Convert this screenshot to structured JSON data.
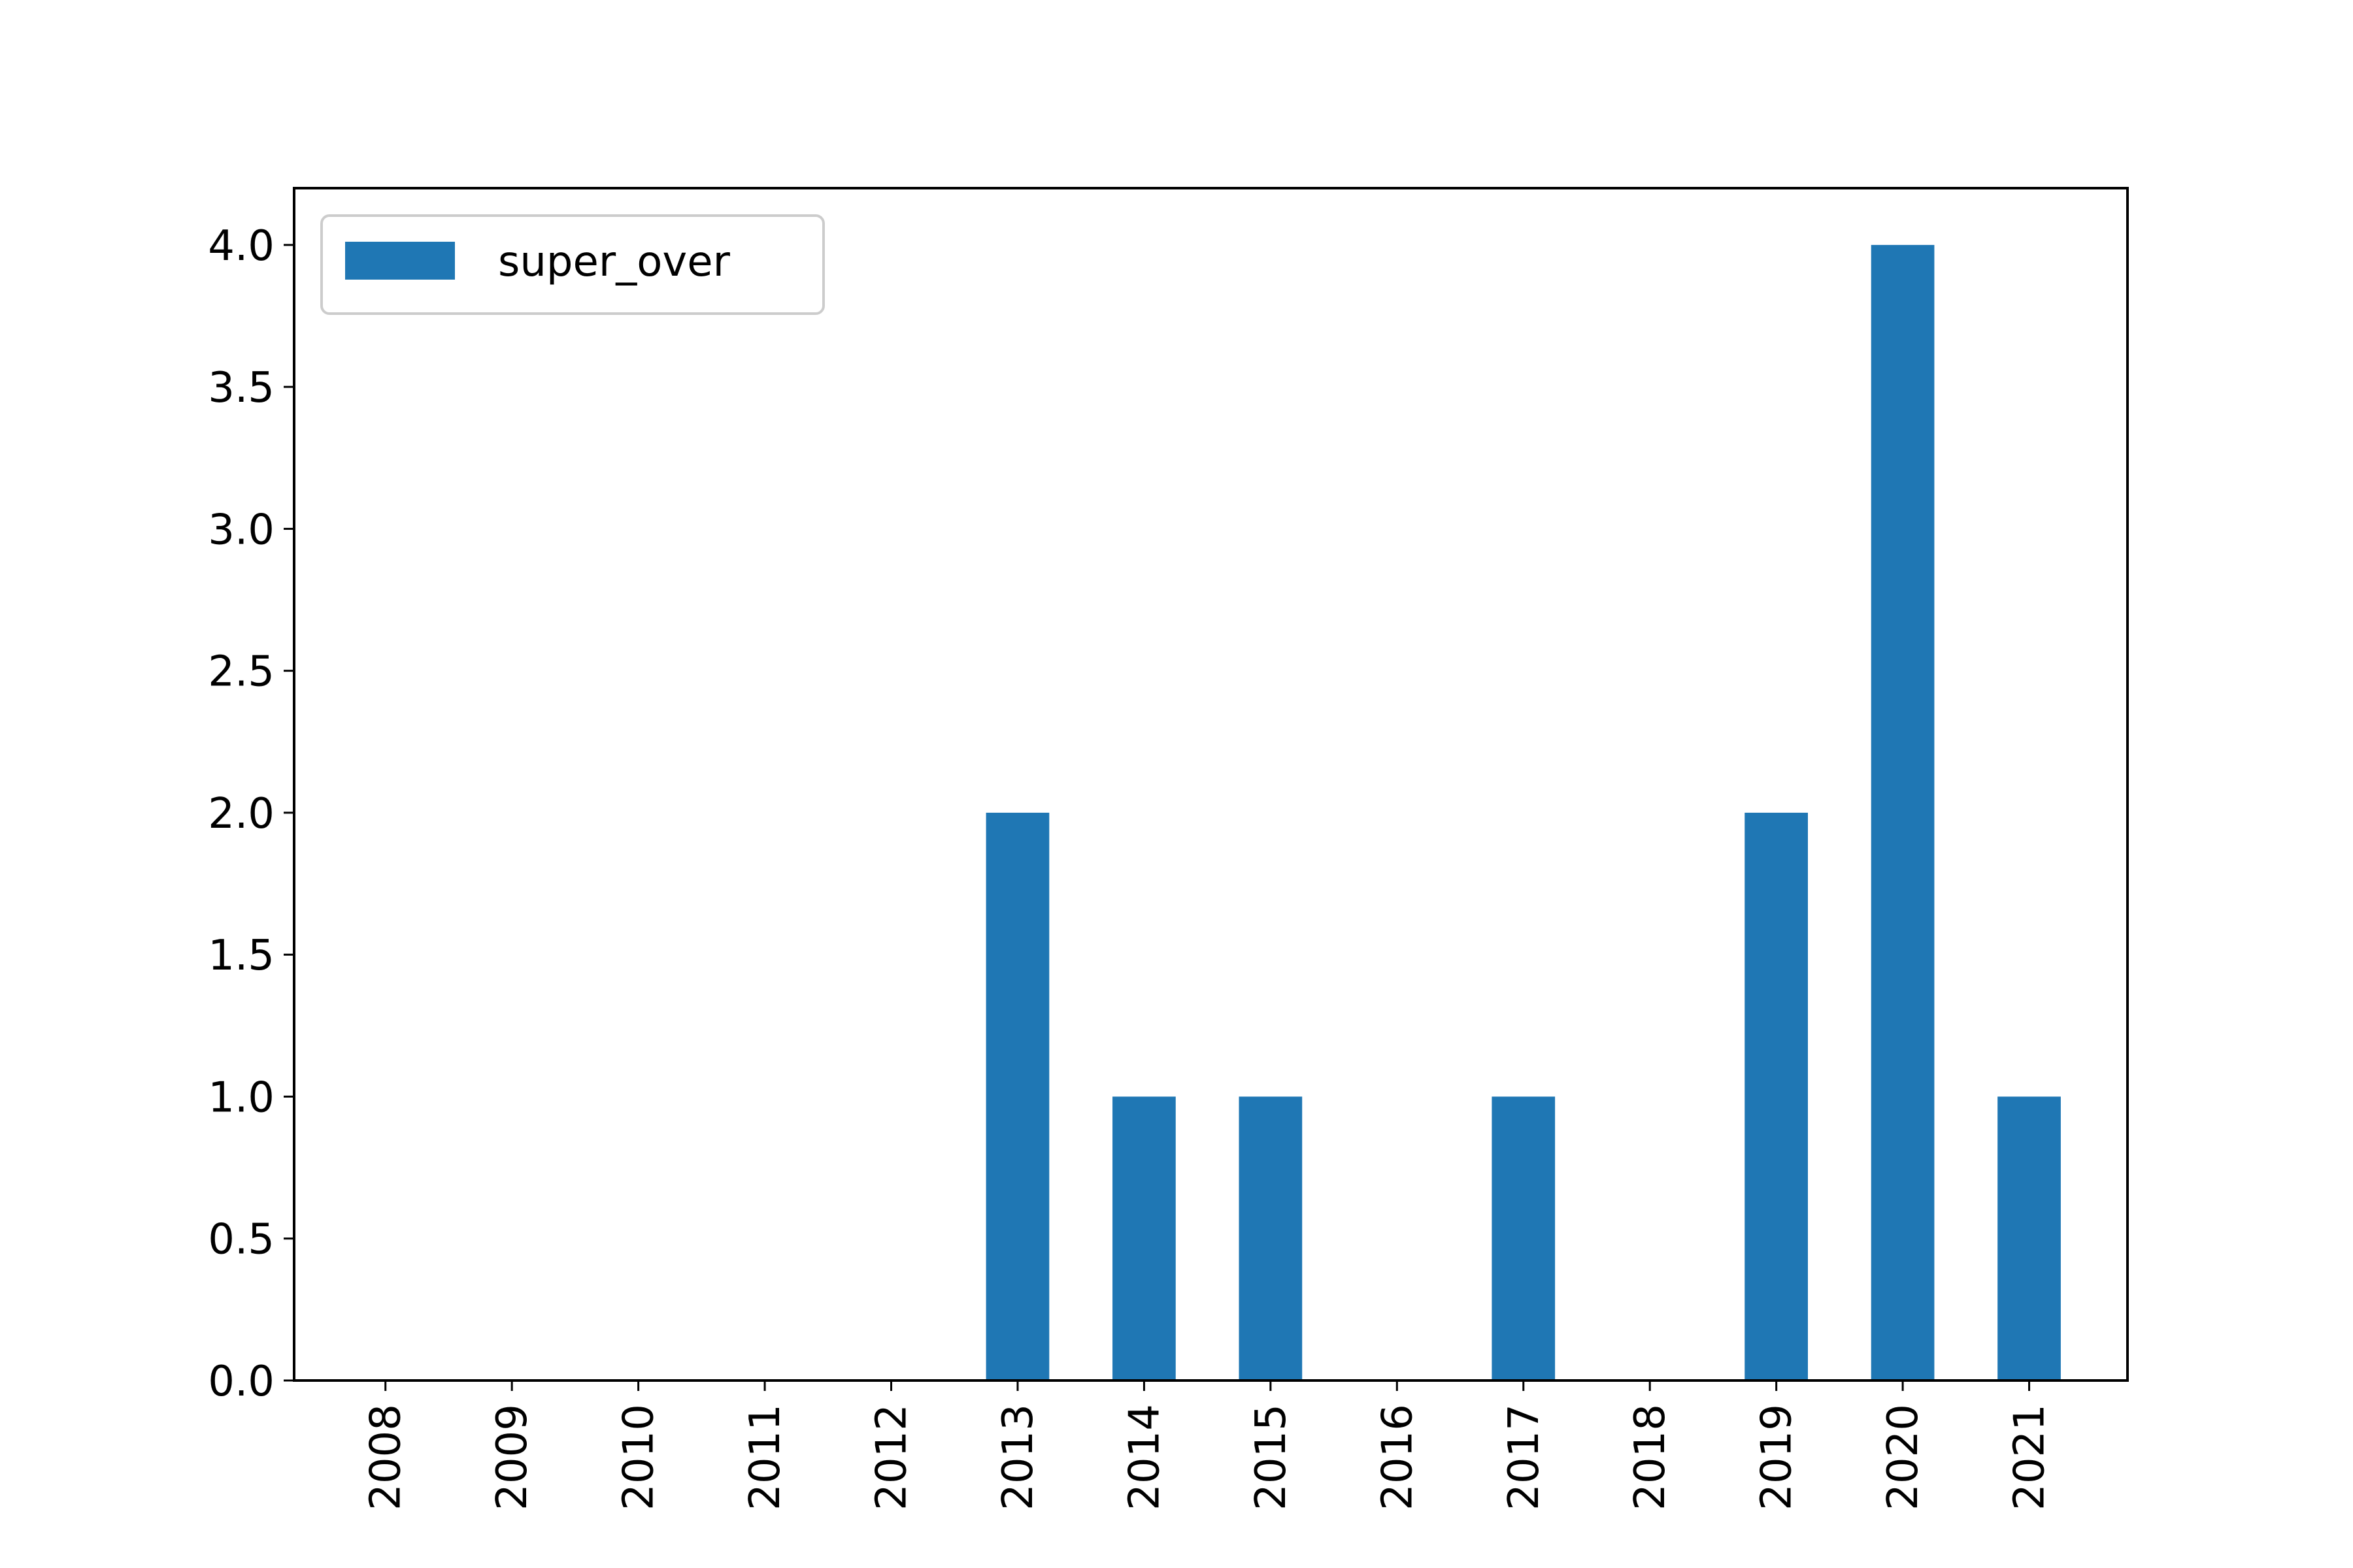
{
  "chart_data": {
    "type": "bar",
    "categories": [
      "2008",
      "2009",
      "2010",
      "2011",
      "2012",
      "2013",
      "2014",
      "2015",
      "2016",
      "2017",
      "2018",
      "2019",
      "2020",
      "2021"
    ],
    "series": [
      {
        "name": "super_over",
        "values": [
          0,
          0,
          0,
          0,
          0,
          2,
          1,
          1,
          0,
          1,
          0,
          2,
          4,
          1
        ],
        "color": "#1f77b4"
      }
    ],
    "title": "",
    "xlabel": "",
    "ylabel": "",
    "ylim": [
      0,
      4.2
    ],
    "yticks": [
      "0.0",
      "0.5",
      "1.0",
      "1.5",
      "2.0",
      "2.5",
      "3.0",
      "3.5",
      "4.0"
    ],
    "ytick_values": [
      0,
      0.5,
      1.0,
      1.5,
      2.0,
      2.5,
      3.0,
      3.5,
      4.0
    ],
    "xtick_rotation": "vertical",
    "grid": false,
    "legend": {
      "position": "top-left"
    }
  }
}
